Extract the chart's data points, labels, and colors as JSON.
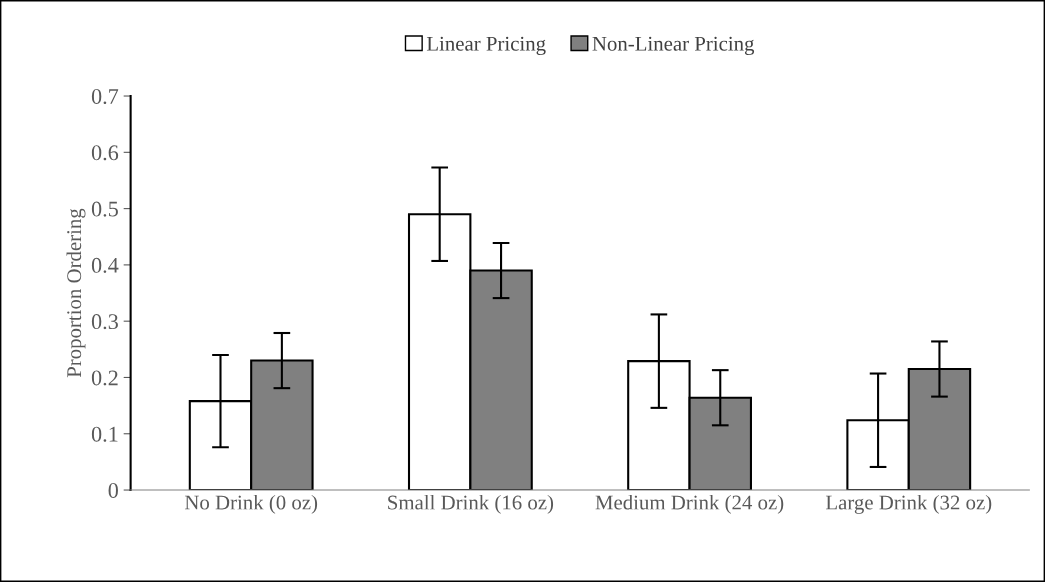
{
  "chart_data": {
    "type": "bar",
    "ylabel": "Proportion Ordering",
    "categories": [
      "No Drink (0 oz)",
      "Small Drink (16 oz)",
      "Medium Drink (24 oz)",
      "Large Drink (32 oz)"
    ],
    "series": [
      {
        "name": "Linear Pricing",
        "color": "#ffffff",
        "values": [
          0.158,
          0.49,
          0.229,
          0.124
        ],
        "errors": [
          0.082,
          0.083,
          0.083,
          0.083
        ]
      },
      {
        "name": "Non-Linear Pricing",
        "color": "#808080",
        "values": [
          0.23,
          0.39,
          0.164,
          0.215
        ],
        "errors": [
          0.049,
          0.049,
          0.049,
          0.049
        ]
      }
    ],
    "ylim": [
      0,
      0.7
    ],
    "yticks": [
      0,
      0.1,
      0.2,
      0.3,
      0.4,
      0.5,
      0.6,
      0.7
    ],
    "grid": false,
    "legend": "top"
  }
}
